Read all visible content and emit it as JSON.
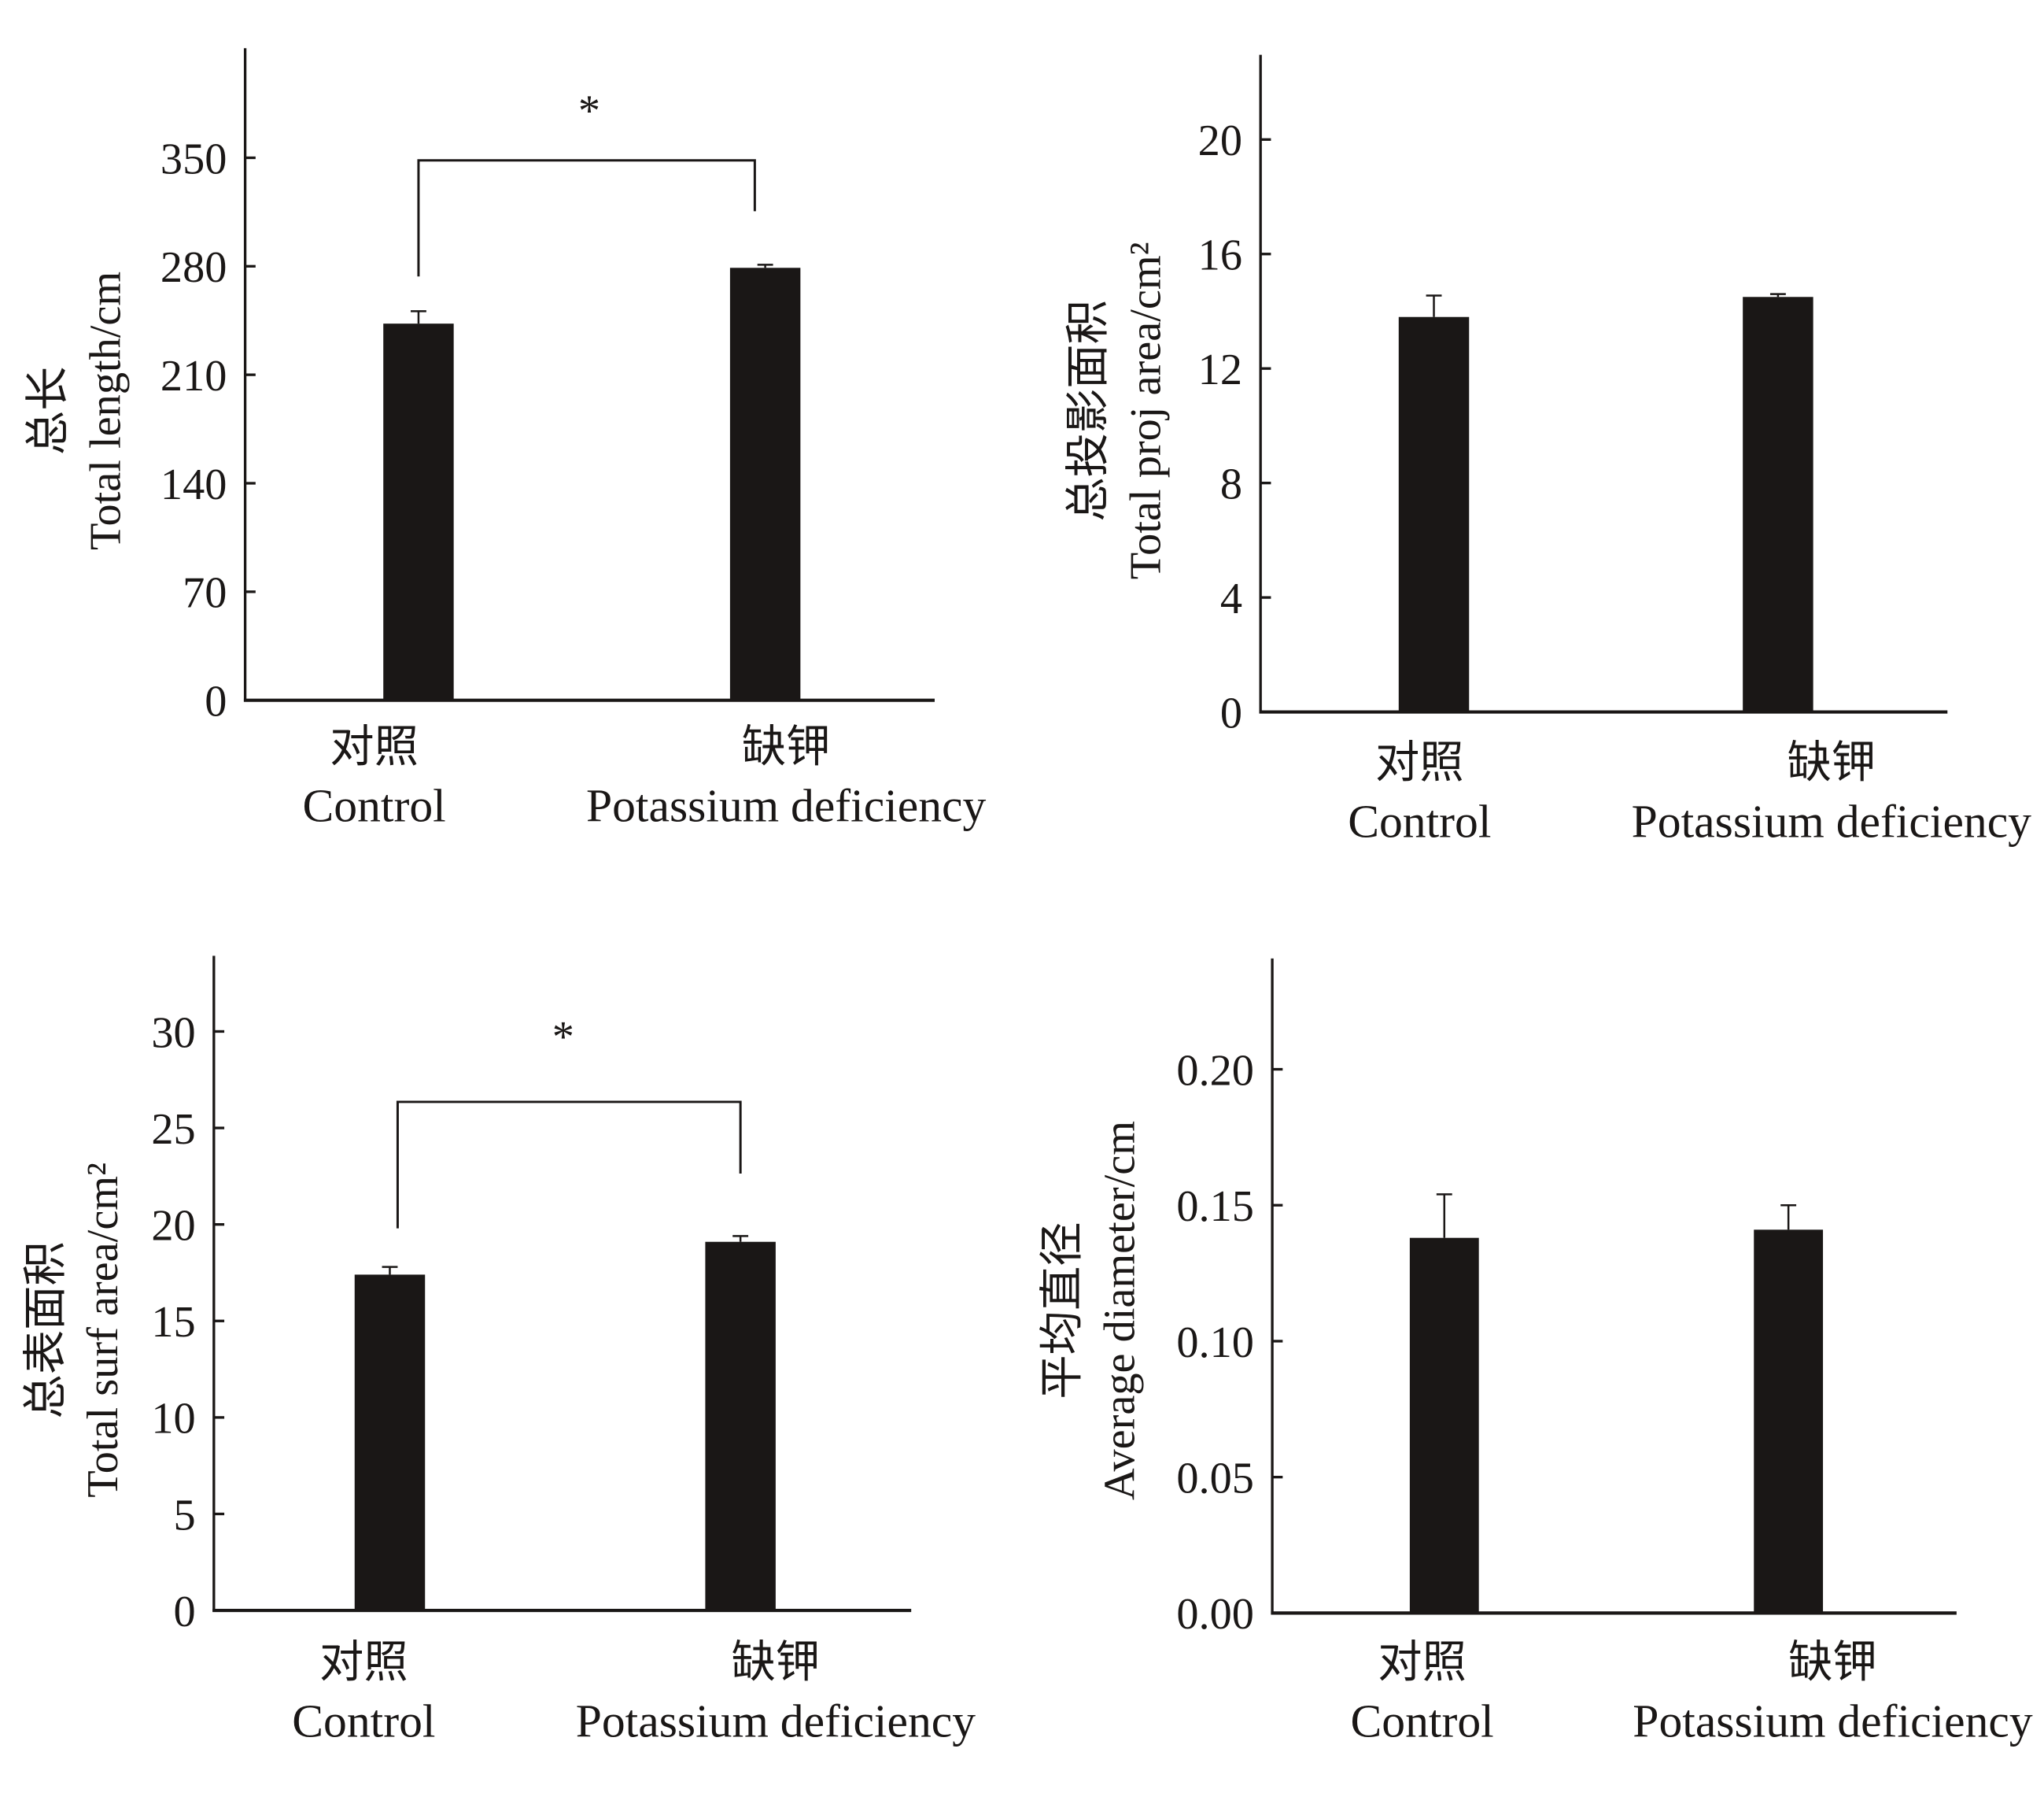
{
  "chart_data": [
    {
      "type": "bar",
      "categories": [
        "对照\nControl",
        "缺钾\nPotassium deficiency"
      ],
      "category_cn": [
        "对照",
        "缺钾"
      ],
      "category_en": [
        "Control",
        "Potassium deficiency"
      ],
      "values": [
        243,
        279
      ],
      "errors": [
        8,
        2
      ],
      "ylabel_cn": "总长",
      "ylabel_en": "Total length/cm",
      "yticks": [
        0,
        70,
        140,
        210,
        280,
        350
      ],
      "ylim": [
        0,
        420
      ],
      "significance": "*",
      "bar_color": "#1a1716"
    },
    {
      "type": "bar",
      "category_cn": [
        "对照",
        "缺钾"
      ],
      "category_en": [
        "Control",
        "Potassium deficiency"
      ],
      "values": [
        13.8,
        14.5
      ],
      "errors": [
        0.75,
        0.1
      ],
      "ylabel_cn": "总投影面积",
      "ylabel_en": "Total proj area/cm²",
      "yticks": [
        0,
        4,
        8,
        12,
        16,
        20
      ],
      "ylim": [
        0,
        23
      ],
      "significance": "",
      "bar_color": "#1a1716"
    },
    {
      "type": "bar",
      "category_cn": [
        "对照",
        "缺钾"
      ],
      "category_en": [
        "Control",
        "Potassium deficiency"
      ],
      "values": [
        17.4,
        19.1
      ],
      "errors": [
        0.4,
        0.3
      ],
      "ylabel_cn": "总表面积",
      "ylabel_en": "Total surf area/cm²",
      "yticks": [
        0,
        5,
        10,
        15,
        20,
        25,
        30
      ],
      "ylim": [
        0,
        34
      ],
      "significance": "*",
      "bar_color": "#1a1716"
    },
    {
      "type": "bar",
      "category_cn": [
        "对照",
        "缺钾"
      ],
      "category_en": [
        "Control",
        "Potassium deficiency"
      ],
      "values": [
        0.138,
        0.141
      ],
      "errors": [
        0.016,
        0.009
      ],
      "ylabel_cn": "平均直径",
      "ylabel_en": "Average diameter/cm",
      "yticks": [
        0.0,
        0.05,
        0.1,
        0.15,
        0.2
      ],
      "ytick_labels": [
        "0.00",
        "0.05",
        "0.10",
        "0.15",
        "0.20"
      ],
      "ylim": [
        0,
        0.24
      ],
      "significance": "",
      "bar_color": "#1a1716"
    }
  ]
}
